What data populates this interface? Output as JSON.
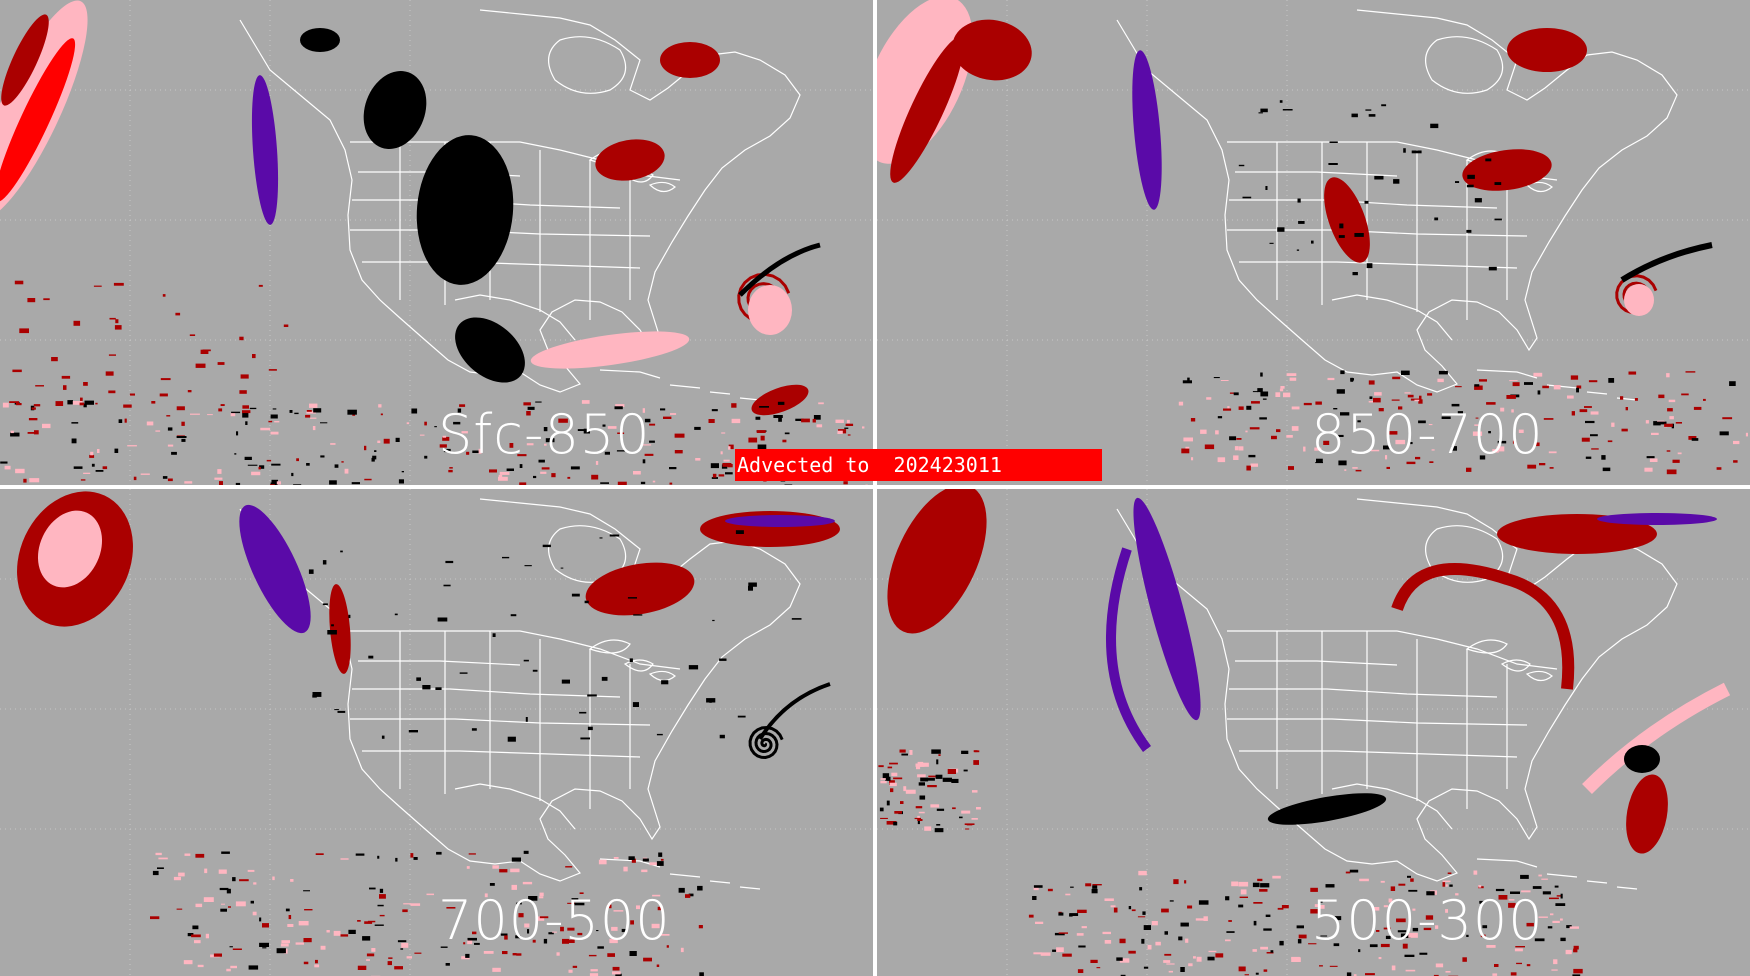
{
  "panels": [
    {
      "label": "Sfc-850"
    },
    {
      "label": "850-700"
    },
    {
      "label": "700-500"
    },
    {
      "label": "500-300"
    }
  ],
  "banner": {
    "text": "Advected to  202423011"
  },
  "colors": {
    "background": "#a9a9a9",
    "banner": "#ff0000",
    "dark_red": "#aa0000",
    "red": "#ff0000",
    "pink": "#ffb6c1",
    "purple": "#5a0aa8",
    "black": "#000000",
    "outline": "#ffffff"
  }
}
